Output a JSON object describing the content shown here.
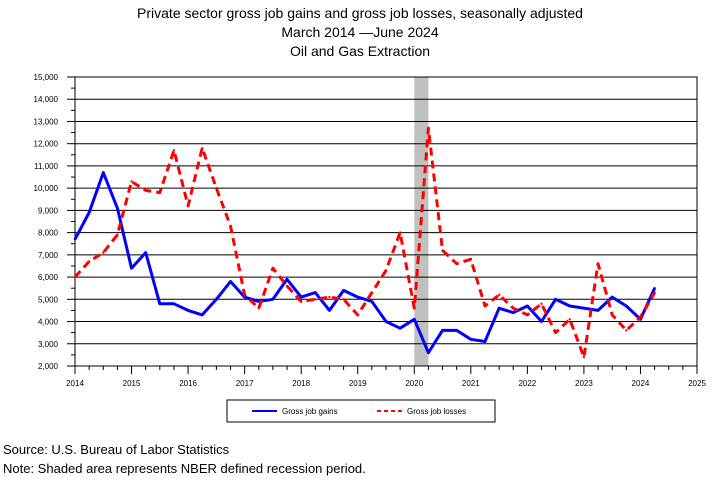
{
  "chart_data": {
    "type": "line",
    "title": "Private sector gross job gains and gross job losses, seasonally adjusted",
    "subtitle": "March 2014 —June 2024",
    "subtitle2": "Oil and Gas Extraction",
    "xlabel": "",
    "ylabel": "",
    "xlim": [
      2014,
      2025
    ],
    "ylim": [
      2000,
      15000
    ],
    "x_ticks": [
      "2014",
      "2015",
      "2016",
      "2017",
      "2018",
      "2019",
      "2020",
      "2021",
      "2022",
      "2023",
      "2024",
      "2025"
    ],
    "y_ticks": [
      "2,000",
      "3,000",
      "4,000",
      "5,000",
      "6,000",
      "7,000",
      "8,000",
      "9,000",
      "10,000",
      "11,000",
      "12,000",
      "13,000",
      "14,000",
      "15,000"
    ],
    "grid": "horizontal",
    "legend_position": "bottom",
    "recession": {
      "start": 2020.0,
      "end": 2020.25,
      "color": "#c0c0c0"
    },
    "series": [
      {
        "name": "Gross job gains",
        "color": "#0000ff",
        "dash": "solid",
        "points": [
          [
            2014.0,
            7700
          ],
          [
            2014.25,
            8900
          ],
          [
            2014.5,
            10700
          ],
          [
            2014.75,
            9100
          ],
          [
            2015.0,
            6400
          ],
          [
            2015.25,
            7100
          ],
          [
            2015.5,
            4800
          ],
          [
            2015.75,
            4800
          ],
          [
            2016.0,
            4500
          ],
          [
            2016.25,
            4300
          ],
          [
            2016.5,
            5000
          ],
          [
            2016.75,
            5800
          ],
          [
            2017.0,
            5100
          ],
          [
            2017.25,
            4900
          ],
          [
            2017.5,
            5000
          ],
          [
            2017.75,
            5900
          ],
          [
            2018.0,
            5100
          ],
          [
            2018.25,
            5300
          ],
          [
            2018.5,
            4500
          ],
          [
            2018.75,
            5400
          ],
          [
            2019.0,
            5100
          ],
          [
            2019.25,
            4900
          ],
          [
            2019.5,
            4000
          ],
          [
            2019.75,
            3700
          ],
          [
            2020.0,
            4100
          ],
          [
            2020.25,
            2600
          ],
          [
            2020.5,
            3600
          ],
          [
            2020.75,
            3600
          ],
          [
            2021.0,
            3200
          ],
          [
            2021.25,
            3100
          ],
          [
            2021.5,
            4600
          ],
          [
            2021.75,
            4400
          ],
          [
            2022.0,
            4700
          ],
          [
            2022.25,
            4000
          ],
          [
            2022.5,
            5000
          ],
          [
            2022.75,
            4700
          ],
          [
            2023.0,
            4600
          ],
          [
            2023.25,
            4500
          ],
          [
            2023.5,
            5100
          ],
          [
            2023.75,
            4700
          ],
          [
            2024.0,
            4100
          ],
          [
            2024.25,
            5500
          ]
        ]
      },
      {
        "name": "Gross job losses",
        "color": "#ff0000",
        "dash": "dashed",
        "points": [
          [
            2014.0,
            6000
          ],
          [
            2014.25,
            6700
          ],
          [
            2014.5,
            7100
          ],
          [
            2014.75,
            7900
          ],
          [
            2015.0,
            10300
          ],
          [
            2015.25,
            9900
          ],
          [
            2015.5,
            9800
          ],
          [
            2015.75,
            11700
          ],
          [
            2016.0,
            9200
          ],
          [
            2016.25,
            11800
          ],
          [
            2016.5,
            10000
          ],
          [
            2016.75,
            8300
          ],
          [
            2017.0,
            5200
          ],
          [
            2017.25,
            4600
          ],
          [
            2017.5,
            6400
          ],
          [
            2017.75,
            5600
          ],
          [
            2018.0,
            4900
          ],
          [
            2018.25,
            5000
          ],
          [
            2018.5,
            5100
          ],
          [
            2018.75,
            5000
          ],
          [
            2019.0,
            4300
          ],
          [
            2019.25,
            5300
          ],
          [
            2019.5,
            6300
          ],
          [
            2019.75,
            8000
          ],
          [
            2020.0,
            4600
          ],
          [
            2020.25,
            12700
          ],
          [
            2020.5,
            7200
          ],
          [
            2020.75,
            6600
          ],
          [
            2021.0,
            6800
          ],
          [
            2021.25,
            4700
          ],
          [
            2021.5,
            5200
          ],
          [
            2021.75,
            4600
          ],
          [
            2022.0,
            4300
          ],
          [
            2022.25,
            4800
          ],
          [
            2022.5,
            3500
          ],
          [
            2022.75,
            4100
          ],
          [
            2023.0,
            2400
          ],
          [
            2023.25,
            6600
          ],
          [
            2023.5,
            4300
          ],
          [
            2023.75,
            3600
          ],
          [
            2024.0,
            4200
          ],
          [
            2024.25,
            5300
          ]
        ]
      }
    ]
  },
  "footer": {
    "source": "Source: U.S. Bureau of Labor Statistics",
    "note": "Note: Shaded area represents NBER defined recession period."
  }
}
